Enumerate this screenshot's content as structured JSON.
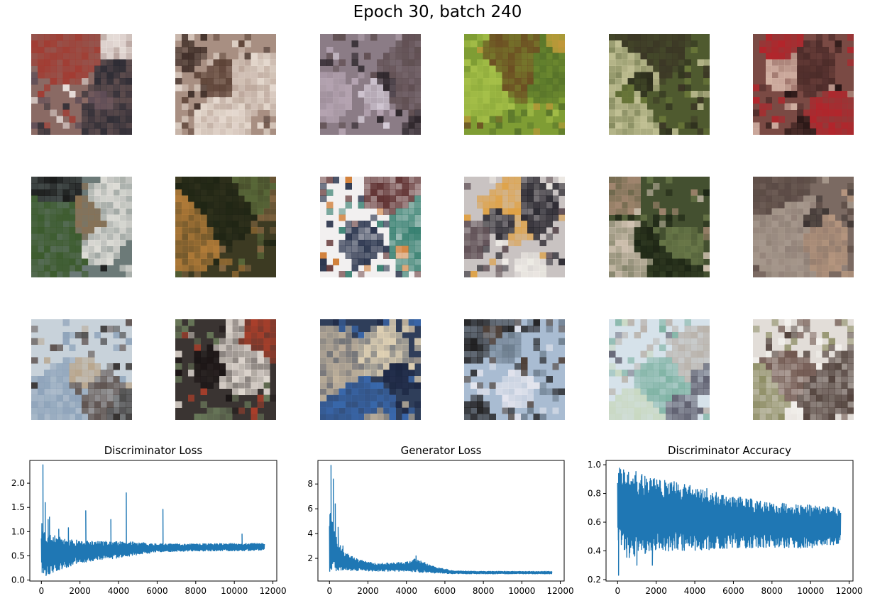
{
  "suptitle": "Epoch 30, batch 240",
  "samples": {
    "rows": 3,
    "cols": 6,
    "tiles": [
      {
        "base": "#8a6a64",
        "accents": [
          "#2a2a33",
          "#f2ece8",
          "#a33a30",
          "#5a4a55"
        ]
      },
      {
        "base": "#a88f82",
        "accents": [
          "#e8ddd3",
          "#5a4034",
          "#d7c8bd",
          "#3d2c26"
        ]
      },
      {
        "base": "#8b7c86",
        "accents": [
          "#2a2328",
          "#d9d0dc",
          "#5e4d50",
          "#b7a6b4"
        ]
      },
      {
        "base": "#7f9d34",
        "accents": [
          "#a8c24a",
          "#6b4a22",
          "#c8963a",
          "#56722a"
        ]
      },
      {
        "base": "#4f5a2f",
        "accents": [
          "#c8c69a",
          "#2b2b1c",
          "#6c7a3a",
          "#3a3525"
        ]
      },
      {
        "base": "#7a4a44",
        "accents": [
          "#b5232a",
          "#1e1010",
          "#d6b6a8",
          "#4a2a28"
        ]
      },
      {
        "base": "#6c7a78",
        "accents": [
          "#e4e2dc",
          "#161616",
          "#3a5a2a",
          "#8c7050"
        ]
      },
      {
        "base": "#3c3a22",
        "accents": [
          "#1e2414",
          "#b9803a",
          "#5a6a3a",
          "#8a6a44"
        ]
      },
      {
        "base": "#f2f0f0",
        "accents": [
          "#2e7a6a",
          "#1f2a44",
          "#5a2a2a",
          "#d07a30"
        ]
      },
      {
        "base": "#c9c3c2",
        "accents": [
          "#24222a",
          "#f2efe9",
          "#e0a040",
          "#5a4a50"
        ]
      },
      {
        "base": "#445030",
        "accents": [
          "#1c2414",
          "#a88a74",
          "#6b7a4a",
          "#d8c8b8"
        ]
      },
      {
        "base": "#7b6a62",
        "accents": [
          "#a89a8e",
          "#3a3230",
          "#b89880",
          "#5a4a44"
        ]
      },
      {
        "base": "#c8d2da",
        "accents": [
          "#5a4e4a",
          "#b8a48a",
          "#8aa0b8",
          "#2e2a28"
        ]
      },
      {
        "base": "#3a3432",
        "accents": [
          "#e8e0d8",
          "#1a1414",
          "#6a7a5a",
          "#b0402a"
        ]
      },
      {
        "base": "#2f3e5a",
        "accents": [
          "#c8b8a0",
          "#1a2440",
          "#3a6ab0",
          "#e8d8b8"
        ]
      },
      {
        "base": "#a9bcd2",
        "accents": [
          "#1a1818",
          "#e8e8f0",
          "#6a7a8a",
          "#4a3a30"
        ]
      },
      {
        "base": "#d6e2ea",
        "accents": [
          "#5a5a6a",
          "#7ab0a0",
          "#b8b0a8",
          "#c8d8c0"
        ]
      },
      {
        "base": "#e2ddd8",
        "accents": [
          "#4a3a34",
          "#8a8a60",
          "#f4f2ee",
          "#6a5048"
        ]
      }
    ]
  },
  "chart_data": [
    {
      "type": "line",
      "title": "Discriminator Loss",
      "xlim": [
        -600,
        12200
      ],
      "ylim": [
        -0.02,
        2.47
      ],
      "xticks": [
        0,
        2000,
        4000,
        6000,
        8000,
        10000,
        12000
      ],
      "xtick_labels": [
        "0",
        "2000",
        "4000",
        "6000",
        "8000",
        "10000",
        "12000"
      ],
      "yticks": [
        0.0,
        0.5,
        1.0,
        1.5,
        2.0
      ],
      "ytick_labels": [
        "0.0",
        "0.5",
        "1.0",
        "1.5",
        "2.0"
      ],
      "color": "#1f77b4",
      "n_points": 11560,
      "x_end": 11560,
      "envelope": {
        "x": [
          0,
          200,
          600,
          1200,
          2000,
          3000,
          4000,
          5000,
          6000,
          8000,
          10000,
          11560
        ],
        "low": [
          0.05,
          0.08,
          0.15,
          0.25,
          0.35,
          0.42,
          0.45,
          0.52,
          0.58,
          0.6,
          0.6,
          0.62
        ],
        "high": [
          1.2,
          1.0,
          0.95,
          0.85,
          0.82,
          0.8,
          0.8,
          0.78,
          0.75,
          0.75,
          0.76,
          0.76
        ]
      },
      "spikes": [
        [
          80,
          2.38
        ],
        [
          200,
          1.6
        ],
        [
          350,
          1.25
        ],
        [
          420,
          1.3
        ],
        [
          900,
          1.05
        ],
        [
          1400,
          1.08
        ],
        [
          2300,
          1.43
        ],
        [
          3600,
          1.25
        ],
        [
          4400,
          1.8
        ],
        [
          6300,
          1.46
        ],
        [
          10400,
          0.95
        ]
      ]
    },
    {
      "type": "line",
      "title": "Generator Loss",
      "xlim": [
        -600,
        12200
      ],
      "ylim": [
        0.17,
        9.9
      ],
      "xticks": [
        0,
        2000,
        4000,
        6000,
        8000,
        10000,
        12000
      ],
      "xtick_labels": [
        "0",
        "2000",
        "4000",
        "6000",
        "8000",
        "10000",
        "12000"
      ],
      "yticks": [
        2,
        4,
        6,
        8
      ],
      "ytick_labels": [
        "2",
        "4",
        "6",
        "8"
      ],
      "color": "#1f77b4",
      "n_points": 11560,
      "x_end": 11560,
      "envelope": {
        "x": [
          0,
          150,
          400,
          800,
          1500,
          2500,
          4000,
          4500,
          5500,
          6500,
          8000,
          11560
        ],
        "low": [
          0.6,
          1.0,
          1.0,
          1.0,
          1.0,
          0.95,
          0.95,
          0.9,
          0.8,
          0.75,
          0.75,
          0.75
        ],
        "high": [
          6.0,
          5.0,
          3.5,
          2.5,
          1.9,
          1.6,
          1.7,
          2.0,
          1.3,
          1.0,
          0.95,
          0.95
        ]
      },
      "spikes": [
        [
          80,
          9.5
        ],
        [
          200,
          8.4
        ],
        [
          300,
          6.4
        ],
        [
          450,
          4.5
        ],
        [
          700,
          3.0
        ],
        [
          4500,
          2.2
        ]
      ]
    },
    {
      "type": "line",
      "title": "Discriminator Accuracy",
      "xlim": [
        -600,
        12200
      ],
      "ylim": [
        0.19,
        1.03
      ],
      "xticks": [
        0,
        2000,
        4000,
        6000,
        8000,
        10000,
        12000
      ],
      "xtick_labels": [
        "0",
        "2000",
        "4000",
        "6000",
        "8000",
        "10000",
        "12000"
      ],
      "yticks": [
        0.2,
        0.4,
        0.6,
        0.8,
        1.0
      ],
      "ytick_labels": [
        "0.2",
        "0.4",
        "0.6",
        "0.8",
        "1.0"
      ],
      "color": "#1f77b4",
      "n_points": 11560,
      "x_end": 11560,
      "envelope": {
        "x": [
          0,
          500,
          1500,
          3000,
          4500,
          6000,
          8000,
          10000,
          11560
        ],
        "low": [
          0.45,
          0.35,
          0.38,
          0.4,
          0.4,
          0.42,
          0.42,
          0.42,
          0.45
        ],
        "high": [
          1.0,
          0.98,
          0.92,
          0.88,
          0.84,
          0.78,
          0.74,
          0.72,
          0.7
        ]
      },
      "spikes": [
        [
          50,
          0.23
        ],
        [
          1000,
          0.3
        ],
        [
          1800,
          0.3
        ]
      ]
    }
  ]
}
